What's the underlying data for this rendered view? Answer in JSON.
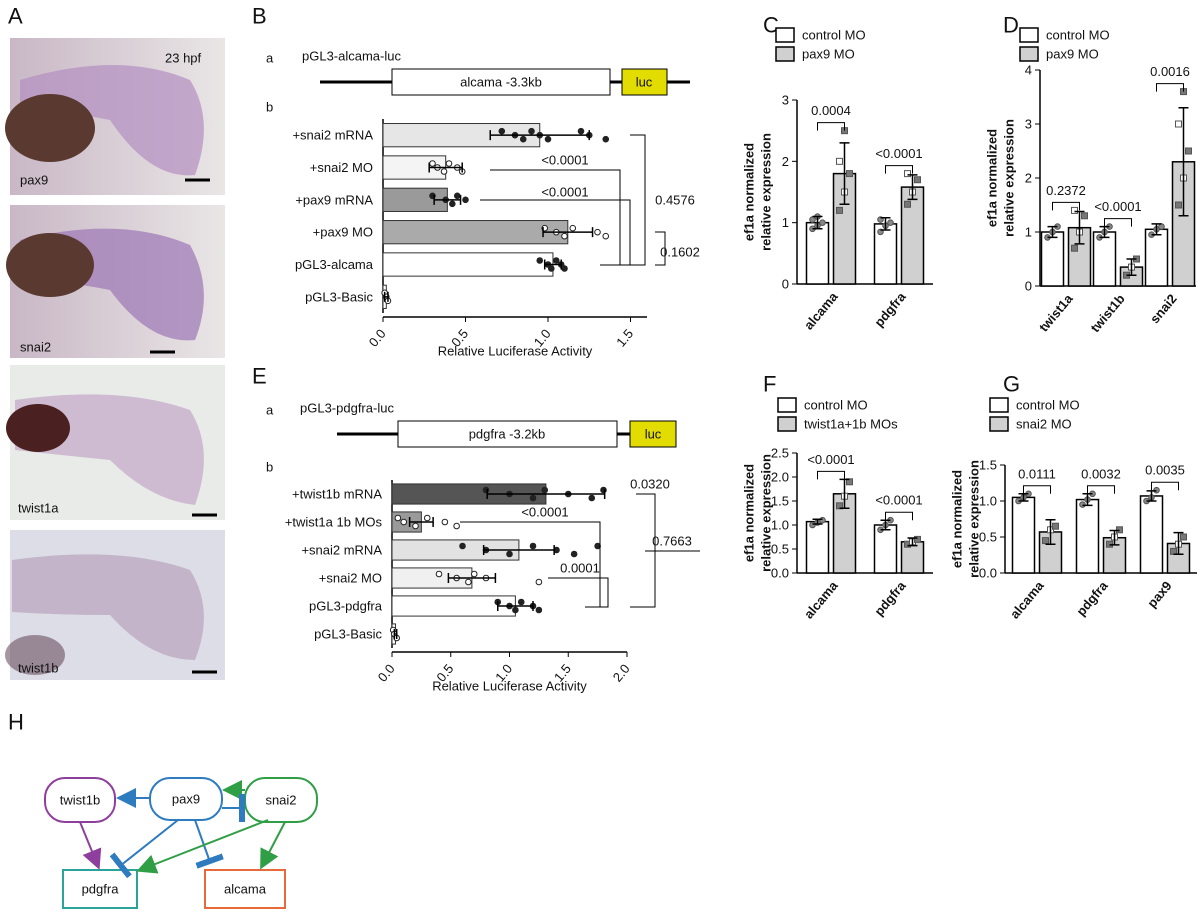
{
  "panel_labels": [
    "A",
    "B",
    "C",
    "D",
    "E",
    "F",
    "G",
    "H"
  ],
  "panel_a": {
    "stage": "23 hpf",
    "images": [
      "pax9",
      "snai2",
      "twist1a",
      "twist1b"
    ]
  },
  "constructs": [
    {
      "sub_a": "a",
      "name": "pGL3-alcama-luc",
      "insert": "alcama -3.3kb",
      "reporter": "luc",
      "sub_b": "b"
    },
    {
      "sub_a": "a",
      "name": "pGL3-pdgfra-luc",
      "insert": "pdgfra -3.2kb",
      "reporter": "luc",
      "sub_b": "b"
    }
  ],
  "chart_data": [
    {
      "type": "bar",
      "horizontal": true,
      "categories": [
        "+snai2 mRNA",
        "+snai2 MO",
        "+pax9 mRNA",
        "+pax9 MO",
        "pGL3-alcama",
        "pGL3-Basic"
      ],
      "values": [
        0.95,
        0.38,
        0.39,
        1.12,
        1.03,
        0.02
      ],
      "errors": [
        0.3,
        0.1,
        0.08,
        0.15,
        0.05,
        0.01
      ],
      "colors": [
        "#e6e6e6",
        "#f4f4f4",
        "#9a9a9a",
        "#aaaaaa",
        "#ffffff",
        "#ffffff"
      ],
      "points": [
        [
          0.72,
          0.8,
          0.85,
          0.9,
          0.95,
          1.0,
          1.2,
          1.25,
          1.35
        ],
        [
          0.3,
          0.33,
          0.37,
          0.4,
          0.45,
          0.48
        ],
        [
          0.3,
          0.38,
          0.42,
          0.45,
          0.5
        ],
        [
          0.98,
          1.05,
          1.1,
          1.15,
          1.3,
          1.35
        ],
        [
          0.95,
          1.0,
          1.02,
          1.05,
          1.08,
          1.1
        ],
        [
          0.01,
          0.02,
          0.03
        ]
      ],
      "xlim": [
        0,
        1.6
      ],
      "xticks": [
        {
          "value": 0,
          "label": "0.0"
        },
        0.5,
        {
          "value": 1,
          "label": "1.0"
        },
        1.5
      ],
      "xlabel": "Relative Luciferase Activity",
      "stats": [
        "<0.0001",
        "<0.0001",
        "0.4576",
        "0.1602"
      ]
    },
    {
      "type": "bar",
      "categories": [
        "alcama",
        "pdgfra"
      ],
      "series": [
        {
          "name": "control MO",
          "color": "#ffffff",
          "values": [
            1.0,
            0.98
          ],
          "errors": [
            0.1,
            0.1
          ],
          "points": [
            [
              0.9,
              0.95,
              1.0,
              1.05,
              1.1
            ],
            [
              0.85,
              0.95,
              1.0,
              1.05
            ]
          ]
        },
        {
          "name": "pax9 MO",
          "color": "#d0d0d0",
          "values": [
            1.8,
            1.58
          ],
          "errors": [
            0.5,
            0.2
          ],
          "points": [
            [
              1.2,
              1.5,
              1.8,
              2.0,
              2.5
            ],
            [
              1.3,
              1.5,
              1.7,
              1.8
            ]
          ]
        }
      ],
      "ylim": [
        0,
        3
      ],
      "yticks": [
        0,
        1,
        2,
        3
      ],
      "ylabel": [
        "ef1a normalized",
        "relative expression"
      ],
      "stats": [
        "0.0004",
        "<0.0001"
      ]
    },
    {
      "type": "bar",
      "categories": [
        "twist1a",
        "twist1b",
        "snai2"
      ],
      "series": [
        {
          "name": "control MO",
          "color": "#ffffff",
          "values": [
            1.0,
            1.0,
            1.05
          ],
          "errors": [
            0.1,
            0.1,
            0.1
          ],
          "points": [
            [
              0.9,
              1.0,
              1.1
            ],
            [
              0.9,
              1.0,
              1.1
            ],
            [
              0.95,
              1.05,
              1.1
            ]
          ]
        },
        {
          "name": "pax9 MO",
          "color": "#d0d0d0",
          "values": [
            1.08,
            0.35,
            2.3
          ],
          "errors": [
            0.3,
            0.15,
            1.0
          ],
          "points": [
            [
              0.7,
              1.0,
              1.3,
              1.4
            ],
            [
              0.2,
              0.35,
              0.5
            ],
            [
              1.5,
              2.0,
              2.5,
              3.0,
              3.6
            ]
          ]
        }
      ],
      "ylim": [
        0,
        4
      ],
      "yticks": [
        0,
        1,
        2,
        3,
        4
      ],
      "ylabel": [
        "ef1a normalized",
        "relative expression"
      ],
      "stats": [
        "0.2372",
        "<0.0001",
        "0.0016"
      ]
    },
    {
      "type": "bar",
      "horizontal": true,
      "categories": [
        "+twist1b mRNA",
        "+twist1a 1b MOs",
        "+snai2 mRNA",
        "+snai2 MO",
        "pGL3-pdgfra",
        "pGL3-Basic"
      ],
      "values": [
        1.31,
        0.25,
        1.08,
        0.68,
        1.05,
        0.03
      ],
      "errors": [
        0.5,
        0.1,
        0.3,
        0.2,
        0.15,
        0.01
      ],
      "colors": [
        "#555555",
        "#9a9a9a",
        "#e2e2e2",
        "#f0f0f0",
        "#ffffff",
        "#ffffff"
      ],
      "points": [
        [
          0.8,
          1.0,
          1.2,
          1.3,
          1.5,
          1.7,
          1.8
        ],
        [
          0.05,
          0.1,
          0.2,
          0.3,
          0.45,
          0.55
        ],
        [
          0.6,
          0.8,
          1.0,
          1.2,
          1.4,
          1.55,
          1.75
        ],
        [
          0.4,
          0.55,
          0.65,
          0.7,
          0.8,
          1.25
        ],
        [
          0.9,
          1.0,
          1.05,
          1.1,
          1.2,
          1.25
        ],
        [
          0.01,
          0.02,
          0.04
        ]
      ],
      "xlim": [
        0,
        2
      ],
      "xticks": [
        {
          "value": 0,
          "label": "0.0"
        },
        0.5,
        {
          "value": 1,
          "label": "1.0"
        },
        1.5,
        {
          "value": 2,
          "label": "2.0"
        }
      ],
      "xlabel": "Relative Luciferase Activity",
      "stats": [
        "0.0320",
        "<0.0001",
        "0.7663",
        "0.0001"
      ]
    },
    {
      "type": "bar",
      "categories": [
        "alcama",
        "pdgfra"
      ],
      "series": [
        {
          "name": "control MO",
          "color": "#ffffff",
          "values": [
            1.07,
            1.0
          ],
          "errors": [
            0.05,
            0.1
          ],
          "points": [
            [
              1.0,
              1.05,
              1.1
            ],
            [
              0.9,
              1.0,
              1.1
            ]
          ]
        },
        {
          "name": "twist1a+1b MOs",
          "color": "#d0d0d0",
          "values": [
            1.65,
            0.65
          ],
          "errors": [
            0.3,
            0.08
          ],
          "points": [
            [
              1.4,
              1.6,
              1.9
            ],
            [
              0.6,
              0.65,
              0.7
            ]
          ]
        }
      ],
      "ylim": [
        0,
        2.5
      ],
      "yticks": [
        {
          "value": 0,
          "label": "0.0"
        },
        0.5,
        {
          "value": 1,
          "label": "1.0"
        },
        1.5,
        {
          "value": 2,
          "label": "2.0"
        },
        2.5
      ],
      "ylabel": [
        "ef1a normalized",
        "relative expression"
      ],
      "stats": [
        "<0.0001",
        "<0.0001"
      ]
    },
    {
      "type": "bar",
      "categories": [
        "alcama",
        "pdgfra",
        "pax9"
      ],
      "series": [
        {
          "name": "control MO",
          "color": "#ffffff",
          "values": [
            1.05,
            1.02,
            1.07
          ],
          "errors": [
            0.05,
            0.08,
            0.07
          ],
          "points": [
            [
              1.0,
              1.05,
              1.1
            ],
            [
              0.95,
              1.02,
              1.1
            ],
            [
              1.0,
              1.05,
              1.15
            ]
          ]
        },
        {
          "name": "snai2 MO",
          "color": "#d0d0d0",
          "values": [
            0.57,
            0.49,
            0.41
          ],
          "errors": [
            0.17,
            0.1,
            0.15
          ],
          "points": [
            [
              0.45,
              0.6,
              0.65
            ],
            [
              0.4,
              0.5,
              0.6
            ],
            [
              0.3,
              0.4,
              0.5
            ]
          ]
        }
      ],
      "ylim": [
        0,
        1.5
      ],
      "yticks": [
        {
          "value": 0,
          "label": "0.0"
        },
        0.5,
        {
          "value": 1,
          "label": "1.0"
        },
        1.5
      ],
      "ylabel": [
        "ef1a normalized",
        "relative expression"
      ],
      "stats": [
        "0.0111",
        "0.0032",
        "0.0035"
      ]
    }
  ],
  "diagram": {
    "nodes": [
      "twist1b",
      "pax9",
      "snai2",
      "pdgfra",
      "alcama"
    ]
  }
}
